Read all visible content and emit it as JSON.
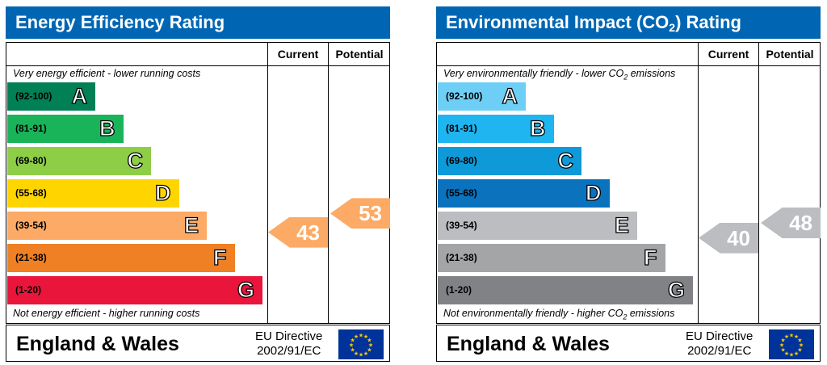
{
  "chart_data": [
    {
      "type": "bar",
      "title": "Energy Efficiency Rating",
      "column_headers": {
        "current": "Current",
        "potential": "Potential"
      },
      "note_top": "Very energy efficient - lower running costs",
      "note_bottom": "Not energy efficient - higher running costs",
      "bands": [
        {
          "range": "(92-100)",
          "letter": "A",
          "color": "#008054",
          "min": 92,
          "max": 100
        },
        {
          "range": "(81-91)",
          "letter": "B",
          "color": "#19b459",
          "min": 81,
          "max": 91
        },
        {
          "range": "(69-80)",
          "letter": "C",
          "color": "#8dce46",
          "min": 69,
          "max": 80
        },
        {
          "range": "(55-68)",
          "letter": "D",
          "color": "#ffd500",
          "min": 55,
          "max": 68
        },
        {
          "range": "(39-54)",
          "letter": "E",
          "color": "#fcaa65",
          "min": 39,
          "max": 54
        },
        {
          "range": "(21-38)",
          "letter": "F",
          "color": "#ef8023",
          "min": 21,
          "max": 38
        },
        {
          "range": "(1-20)",
          "letter": "G",
          "color": "#e9153b",
          "min": 1,
          "max": 20
        }
      ],
      "current": {
        "value": 43,
        "label": "43",
        "color": "#fcaa65"
      },
      "potential": {
        "value": 53,
        "label": "53",
        "color": "#fcaa65"
      },
      "footer": {
        "country": "England & Wales",
        "directive_line1": "EU Directive",
        "directive_line2": "2002/91/EC"
      }
    },
    {
      "type": "bar",
      "title": "Environmental Impact (CO",
      "title_sub": "2",
      "title_end": ") Rating",
      "column_headers": {
        "current": "Current",
        "potential": "Potential"
      },
      "note_top": "Very environmentally friendly - lower CO",
      "note_top_sub": "2",
      "note_top_end": " emissions",
      "note_bottom": "Not environmentally friendly - higher CO",
      "note_bottom_sub": "2",
      "note_bottom_end": " emissions",
      "bands": [
        {
          "range": "(92-100)",
          "letter": "A",
          "color": "#6ecff6",
          "min": 92,
          "max": 100
        },
        {
          "range": "(81-91)",
          "letter": "B",
          "color": "#1fb5f0",
          "min": 81,
          "max": 91
        },
        {
          "range": "(69-80)",
          "letter": "C",
          "color": "#0e9ad8",
          "min": 69,
          "max": 80
        },
        {
          "range": "(55-68)",
          "letter": "D",
          "color": "#0b72bd",
          "min": 55,
          "max": 68
        },
        {
          "range": "(39-54)",
          "letter": "E",
          "color": "#bbbdc0",
          "min": 39,
          "max": 54
        },
        {
          "range": "(21-38)",
          "letter": "F",
          "color": "#a3a5a7",
          "min": 21,
          "max": 38
        },
        {
          "range": "(1-20)",
          "letter": "G",
          "color": "#808285",
          "min": 1,
          "max": 20
        }
      ],
      "current": {
        "value": 40,
        "label": "40",
        "color": "#bbbdc0"
      },
      "potential": {
        "value": 48,
        "label": "48",
        "color": "#bbbdc0"
      },
      "footer": {
        "country": "England & Wales",
        "directive_line1": "EU Directive",
        "directive_line2": "2002/91/EC"
      }
    }
  ]
}
